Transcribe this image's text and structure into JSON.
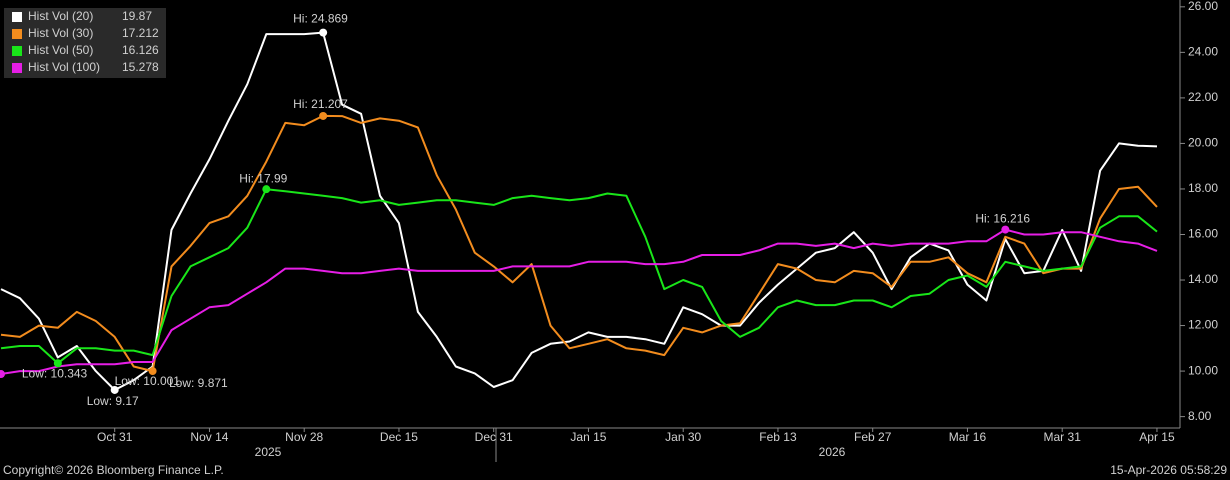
{
  "chart_data": {
    "type": "line",
    "categories": [
      null,
      null,
      null,
      null,
      null,
      null,
      "Oct 31",
      null,
      null,
      null,
      null,
      "Nov 14",
      null,
      null,
      null,
      null,
      "Nov 28",
      null,
      null,
      null,
      null,
      "Dec 15",
      null,
      null,
      null,
      null,
      "Dec 31",
      null,
      null,
      null,
      null,
      "Jan 15",
      null,
      null,
      null,
      null,
      "Jan 30",
      null,
      null,
      null,
      null,
      "Feb 13",
      null,
      null,
      null,
      null,
      "Feb 27",
      null,
      null,
      null,
      null,
      "Mar 16",
      null,
      null,
      null,
      null,
      "Mar 31",
      null,
      null,
      null,
      null,
      "Apr 15"
    ],
    "x_group_labels": [
      "2025",
      "2026"
    ],
    "series": [
      {
        "name": "Hist Vol (20)",
        "color": "#ffffff",
        "values": [
          13.6,
          13.2,
          12.3,
          10.6,
          11.1,
          10.0,
          9.17,
          9.6,
          10.2,
          16.2,
          17.8,
          19.3,
          21.0,
          22.6,
          24.8,
          24.8,
          24.8,
          24.869,
          21.7,
          21.3,
          17.7,
          16.5,
          12.6,
          11.5,
          10.2,
          9.9,
          9.3,
          9.6,
          10.8,
          11.2,
          11.3,
          11.7,
          11.5,
          11.5,
          11.4,
          11.2,
          12.8,
          12.5,
          12.0,
          12.0,
          13.0,
          13.8,
          14.5,
          15.2,
          15.4,
          16.1,
          15.2,
          13.6,
          15.0,
          15.6,
          15.3,
          13.8,
          13.1,
          15.8,
          14.3,
          14.4,
          16.2,
          14.4,
          18.8,
          20.0,
          19.9,
          19.87
        ]
      },
      {
        "name": "Hist Vol (30)",
        "color": "#f28c1e",
        "values": [
          11.6,
          11.5,
          12.0,
          11.9,
          12.6,
          12.2,
          11.5,
          10.2,
          10.001,
          14.6,
          15.5,
          16.5,
          16.8,
          17.7,
          19.2,
          20.9,
          20.8,
          21.207,
          21.2,
          20.9,
          21.1,
          21.0,
          20.7,
          18.6,
          17.1,
          15.2,
          14.6,
          13.9,
          14.7,
          12.0,
          11.0,
          11.2,
          11.4,
          11.0,
          10.9,
          10.7,
          11.9,
          11.7,
          12.0,
          12.1,
          13.4,
          14.7,
          14.5,
          14.0,
          13.9,
          14.4,
          14.3,
          13.7,
          14.8,
          14.8,
          15.0,
          14.3,
          13.9,
          15.9,
          15.6,
          14.3,
          14.5,
          14.5,
          16.7,
          18.0,
          18.1,
          17.212
        ]
      },
      {
        "name": "Hist Vol (50)",
        "color": "#19e619",
        "values": [
          11.0,
          11.1,
          11.1,
          10.343,
          11.0,
          11.0,
          10.9,
          10.9,
          10.7,
          13.3,
          14.6,
          15.0,
          15.4,
          16.3,
          17.99,
          17.9,
          17.8,
          17.7,
          17.6,
          17.4,
          17.5,
          17.3,
          17.4,
          17.5,
          17.5,
          17.4,
          17.3,
          17.6,
          17.7,
          17.6,
          17.5,
          17.6,
          17.8,
          17.7,
          15.9,
          13.6,
          14.0,
          13.7,
          12.2,
          11.5,
          11.9,
          12.8,
          13.1,
          12.9,
          12.9,
          13.1,
          13.1,
          12.8,
          13.3,
          13.4,
          14.0,
          14.2,
          13.7,
          14.8,
          14.6,
          14.4,
          14.5,
          14.6,
          16.3,
          16.8,
          16.8,
          16.126
        ]
      },
      {
        "name": "Hist Vol (100)",
        "color": "#e61ee6",
        "values": [
          9.871,
          10.0,
          10.0,
          10.2,
          10.3,
          10.3,
          10.3,
          10.4,
          10.4,
          11.8,
          12.3,
          12.8,
          12.9,
          13.4,
          13.9,
          14.5,
          14.5,
          14.4,
          14.3,
          14.3,
          14.4,
          14.5,
          14.4,
          14.4,
          14.4,
          14.4,
          14.4,
          14.6,
          14.6,
          14.6,
          14.6,
          14.8,
          14.8,
          14.8,
          14.7,
          14.7,
          14.8,
          15.1,
          15.1,
          15.1,
          15.3,
          15.6,
          15.6,
          15.5,
          15.6,
          15.4,
          15.6,
          15.5,
          15.6,
          15.6,
          15.6,
          15.7,
          15.7,
          16.216,
          16.0,
          16.0,
          16.1,
          16.1,
          15.9,
          15.7,
          15.6,
          15.278
        ]
      }
    ],
    "annotations": [
      {
        "series": 0,
        "index": 17,
        "text": "Hi: 24.869"
      },
      {
        "series": 0,
        "index": 6,
        "text": "Low: 9.17"
      },
      {
        "series": 1,
        "index": 17,
        "text": "Hi: 21.207"
      },
      {
        "series": 1,
        "index": 8,
        "text": "Low: 10.001"
      },
      {
        "series": 2,
        "index": 14,
        "text": "Hi: 17.99"
      },
      {
        "series": 2,
        "index": 3,
        "text": "Low: 10.343"
      },
      {
        "series": 3,
        "index": 0,
        "text": "Low: 9.871"
      },
      {
        "series": 3,
        "index": 53,
        "text": "Hi: 16.216"
      }
    ],
    "ylim": [
      7.5,
      26.3
    ],
    "yticks": [
      {
        "value": 8,
        "label": "8.00"
      },
      {
        "value": 10,
        "label": "10.00"
      },
      {
        "value": 12,
        "label": "12.00"
      },
      {
        "value": 14,
        "label": "14.00"
      },
      {
        "value": 16,
        "label": "16.00"
      },
      {
        "value": 18,
        "label": "18.00"
      },
      {
        "value": 20,
        "label": "20.00"
      },
      {
        "value": 22,
        "label": "22.00"
      },
      {
        "value": 24,
        "label": "24.00"
      },
      {
        "value": 26,
        "label": "26.00"
      }
    ],
    "grid": false,
    "legend": "top-left",
    "footer_left": "Copyright© 2026 Bloomberg Finance L.P.",
    "footer_right": "15-Apr-2026 05:58:29"
  }
}
